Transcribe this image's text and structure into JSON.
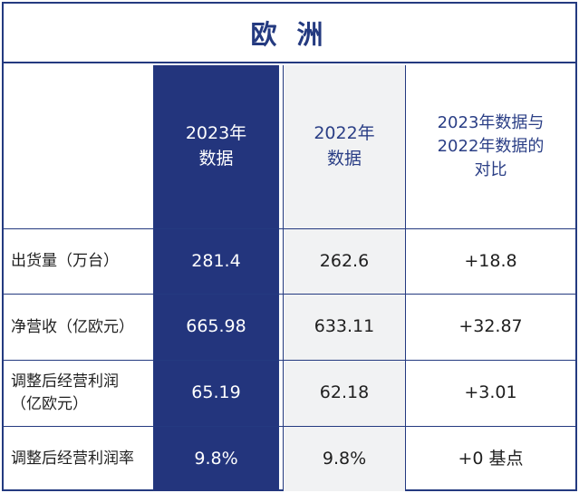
{
  "title": "欧 洲",
  "header": {
    "col_2023": "2023年\n数据",
    "col_2022": "2022年\n数据",
    "col_compare": "2023年数据与\n2022年数据的\n对比"
  },
  "rows": [
    {
      "label": "出货量（万台）",
      "v2023": "281.4",
      "v2022": "262.6",
      "diff": "+18.8"
    },
    {
      "label": "净营收（亿欧元）",
      "v2023": "665.98",
      "v2022": "633.11",
      "diff": "+32.87"
    },
    {
      "label": "调整后经营利润\n（亿欧元）",
      "v2023": "65.19",
      "v2022": "62.18",
      "diff": "+3.01"
    },
    {
      "label": "调整后经营利润率",
      "v2023": "9.8%",
      "v2022": "9.8%",
      "diff": "+0 基点"
    }
  ],
  "colors": {
    "accent": "#243a80",
    "col_2023_bg": "#23357d",
    "col_2022_bg": "#f1f2f3"
  }
}
